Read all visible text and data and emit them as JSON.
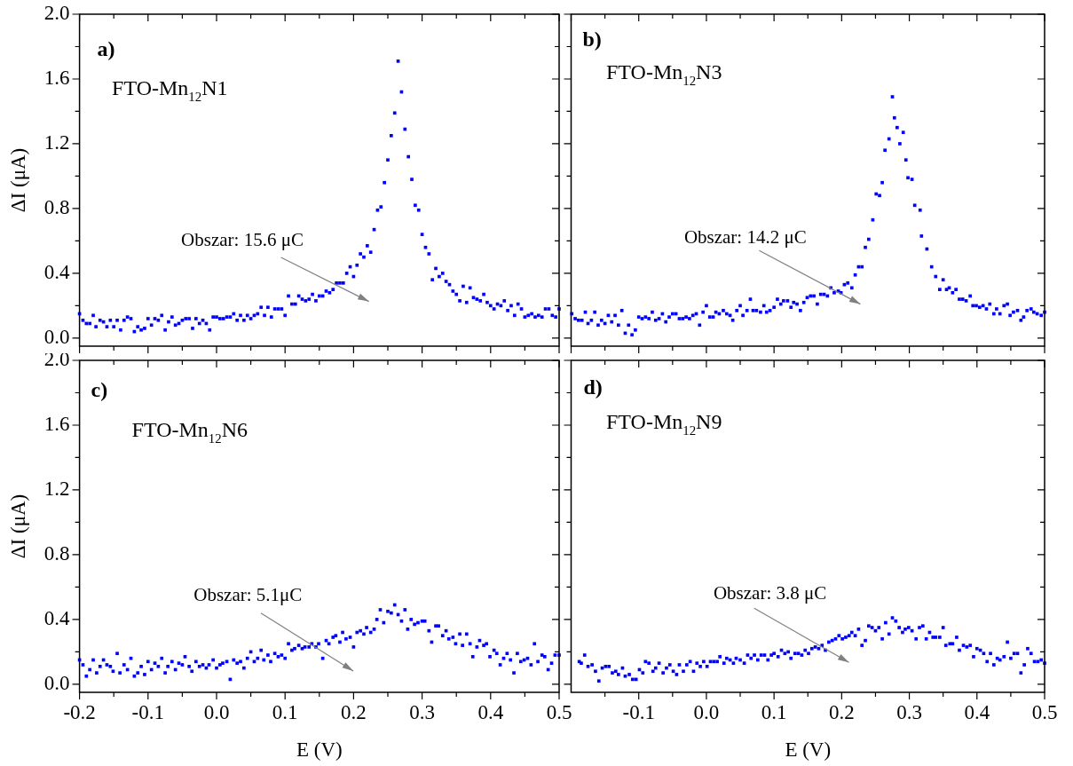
{
  "chart_data": [
    {
      "type": "scatter",
      "title": "a)",
      "subtitle": "FTO-Mn$_{12}$N1",
      "ylabel": "ΔI (μA)",
      "color": "#0000ff",
      "marker": "square",
      "tick_labels": "y",
      "xlim": [
        -0.2,
        0.5
      ],
      "ylim": [
        -0.05,
        2.0
      ],
      "xticks": [
        -0.2,
        {
          "value": -0.15,
          "label": null
        },
        -0.1,
        {
          "value": -0.05,
          "label": null
        },
        0.0,
        {
          "value": 0.05,
          "label": null
        },
        0.1,
        {
          "value": 0.15,
          "label": null
        },
        0.2,
        {
          "value": 0.25,
          "label": null
        },
        0.3,
        {
          "value": 0.35,
          "label": null
        },
        0.4,
        {
          "value": 0.45,
          "label": null
        },
        0.5
      ],
      "yticks": [
        {
          "value": 0,
          "label": "0.0"
        },
        {
          "value": 0.2,
          "label": null
        },
        0.4,
        {
          "value": 0.6,
          "label": null
        },
        0.8,
        {
          "value": 1.0,
          "label": null
        },
        1.2,
        {
          "value": 1.4,
          "label": null
        },
        1.6,
        {
          "value": 1.8,
          "label": null
        },
        {
          "value": 2,
          "label": "2.0"
        }
      ],
      "annotations": [
        "Obszar: 15.6 μC"
      ],
      "x": [
        -0.2,
        -0.195,
        -0.19,
        -0.185,
        -0.18,
        -0.176,
        -0.17,
        -0.165,
        -0.16,
        -0.155,
        -0.15,
        -0.145,
        -0.14,
        -0.135,
        -0.13,
        -0.125,
        -0.12,
        -0.115,
        -0.11,
        -0.105,
        -0.1,
        -0.095,
        -0.09,
        -0.085,
        -0.08,
        -0.075,
        -0.07,
        -0.065,
        -0.06,
        -0.055,
        -0.05,
        -0.045,
        -0.04,
        -0.035,
        -0.03,
        -0.025,
        -0.02,
        -0.015,
        -0.01,
        -0.005,
        0,
        0.005,
        0.01,
        0.015,
        0.02,
        0.025,
        0.03,
        0.035,
        0.04,
        0.045,
        0.05,
        0.055,
        0.06,
        0.065,
        0.07,
        0.075,
        0.08,
        0.085,
        0.09,
        0.095,
        0.1,
        0.105,
        0.11,
        0.115,
        0.12,
        0.125,
        0.13,
        0.135,
        0.14,
        0.145,
        0.15,
        0.155,
        0.16,
        0.165,
        0.17,
        0.175,
        0.18,
        0.185,
        0.19,
        0.195,
        0.2,
        0.205,
        0.21,
        0.215,
        0.22,
        0.225,
        0.23,
        0.235,
        0.24,
        0.245,
        0.25,
        0.255,
        0.26,
        0.265,
        0.27,
        0.275,
        0.28,
        0.285,
        0.29,
        0.295,
        0.3,
        0.305,
        0.31,
        0.315,
        0.32,
        0.325,
        0.33,
        0.335,
        0.34,
        0.345,
        0.35,
        0.355,
        0.36,
        0.365,
        0.37,
        0.375,
        0.38,
        0.385,
        0.39,
        0.395,
        0.4,
        0.405,
        0.41,
        0.415,
        0.42,
        0.425,
        0.43,
        0.435,
        0.44,
        0.445,
        0.45,
        0.455,
        0.46,
        0.465,
        0.47,
        0.475,
        0.48,
        0.485,
        0.49,
        0.495,
        0.5
      ],
      "values": [
        0.15,
        0.11,
        0.09,
        0.09,
        0.14,
        0.07,
        0.11,
        0.1,
        0.07,
        0.11,
        0.07,
        0.11,
        0.05,
        0.11,
        0.13,
        0.12,
        0.04,
        0.07,
        0.05,
        0.06,
        0.12,
        0.08,
        0.12,
        0.11,
        0.14,
        0.05,
        0.1,
        0.13,
        0.08,
        0.09,
        0.11,
        0.12,
        0.12,
        0.06,
        0.12,
        0.09,
        0.11,
        0.09,
        0.05,
        0.13,
        0.13,
        0.12,
        0.12,
        0.13,
        0.13,
        0.15,
        0.11,
        0.14,
        0.11,
        0.14,
        0.12,
        0.14,
        0.15,
        0.19,
        0.14,
        0.19,
        0.13,
        0.18,
        0.18,
        0.18,
        0.14,
        0.26,
        0.21,
        0.21,
        0.26,
        0.24,
        0.23,
        0.24,
        0.27,
        0.23,
        0.26,
        0.26,
        0.29,
        0.28,
        0.3,
        0.34,
        0.34,
        0.34,
        0.4,
        0.44,
        0.38,
        0.45,
        0.52,
        0.5,
        0.57,
        0.53,
        0.67,
        0.79,
        0.81,
        0.96,
        1.1,
        1.25,
        1.39,
        1.71,
        1.52,
        1.29,
        1.12,
        0.98,
        0.82,
        0.79,
        0.64,
        0.56,
        0.52,
        0.36,
        0.43,
        0.38,
        0.4,
        0.35,
        0.33,
        0.29,
        0.27,
        0.23,
        0.32,
        0.22,
        0.31,
        0.25,
        0.24,
        0.23,
        0.27,
        0.22,
        0.2,
        0.18,
        0.21,
        0.2,
        0.23,
        0.17,
        0.2,
        0.14,
        0.21,
        0.18,
        0.13,
        0.14,
        0.15,
        0.13,
        0.14,
        0.13,
        0.18,
        0.18,
        0.14,
        0.13,
        0.18
      ]
    },
    {
      "type": "scatter",
      "title": "b)",
      "subtitle": "FTO-Mn$_{12}$N3",
      "color": "#0000ff",
      "marker": "square",
      "tick_labels": false,
      "xlim": [
        -0.2,
        0.5
      ],
      "ylim": [
        -0.05,
        2.0
      ],
      "xticks": [
        -0.2,
        {
          "value": -0.15,
          "label": null
        },
        -0.1,
        {
          "value": -0.05,
          "label": null
        },
        0,
        {
          "value": 0.05,
          "label": null
        },
        0.1,
        {
          "value": 0.15,
          "label": null
        },
        0.2,
        {
          "value": 0.25,
          "label": null
        },
        0.3,
        {
          "value": 0.35,
          "label": null
        },
        0.4,
        {
          "value": 0.45,
          "label": null
        },
        0.5
      ],
      "yticks": [
        0,
        {
          "value": 0.2,
          "label": null
        },
        0.4,
        {
          "value": 0.6,
          "label": null
        },
        0.8,
        {
          "value": 1.0,
          "label": null
        },
        1.2,
        {
          "value": 1.4,
          "label": null
        },
        1.6,
        {
          "value": 1.8,
          "label": null
        },
        2
      ],
      "annotations": [
        "Obszar: 14.2 μC"
      ],
      "x": [
        -0.199,
        -0.194,
        -0.189,
        -0.184,
        -0.179,
        -0.175,
        -0.17,
        -0.165,
        -0.16,
        -0.155,
        -0.15,
        -0.145,
        -0.14,
        -0.135,
        -0.13,
        -0.125,
        -0.12,
        -0.115,
        -0.11,
        -0.105,
        -0.1,
        -0.095,
        -0.09,
        -0.085,
        -0.08,
        -0.075,
        -0.07,
        -0.065,
        -0.06,
        -0.055,
        -0.05,
        -0.045,
        -0.04,
        -0.035,
        -0.03,
        -0.025,
        -0.02,
        -0.015,
        -0.01,
        -0.005,
        0,
        0.005,
        0.01,
        0.014,
        0.019,
        0.025,
        0.03,
        0.035,
        0.039,
        0.045,
        0.05,
        0.054,
        0.06,
        0.065,
        0.069,
        0.074,
        0.08,
        0.085,
        0.089,
        0.094,
        0.1,
        0.105,
        0.11,
        0.114,
        0.12,
        0.125,
        0.129,
        0.134,
        0.139,
        0.144,
        0.149,
        0.154,
        0.159,
        0.164,
        0.169,
        0.174,
        0.179,
        0.184,
        0.189,
        0.195,
        0.199,
        0.204,
        0.209,
        0.215,
        0.22,
        0.225,
        0.23,
        0.235,
        0.24,
        0.246,
        0.251,
        0.256,
        0.26,
        0.264,
        0.27,
        0.275,
        0.278,
        0.282,
        0.286,
        0.291,
        0.295,
        0.298,
        0.304,
        0.308,
        0.316,
        0.318,
        0.326,
        0.333,
        0.339,
        0.345,
        0.35,
        0.355,
        0.359,
        0.364,
        0.369,
        0.374,
        0.379,
        0.384,
        0.39,
        0.394,
        0.399,
        0.404,
        0.409,
        0.414,
        0.419,
        0.425,
        0.429,
        0.434,
        0.44,
        0.445,
        0.449,
        0.454,
        0.46,
        0.465,
        0.469,
        0.474,
        0.48,
        0.484,
        0.489,
        0.495,
        0.5
      ],
      "values": [
        0.15,
        0.12,
        0.11,
        0.11,
        0.16,
        0.09,
        0.11,
        0.16,
        0.08,
        0.11,
        0.09,
        0.14,
        0.1,
        0.14,
        0.08,
        0.17,
        0.03,
        0.08,
        0.02,
        0.05,
        0.13,
        0.12,
        0.13,
        0.12,
        0.16,
        0.11,
        0.12,
        0.15,
        0.1,
        0.13,
        0.15,
        0.15,
        0.12,
        0.12,
        0.13,
        0.12,
        0.14,
        0.15,
        0.08,
        0.16,
        0.2,
        0.13,
        0.13,
        0.16,
        0.15,
        0.17,
        0.15,
        0.14,
        0.11,
        0.17,
        0.2,
        0.14,
        0.17,
        0.24,
        0.17,
        0.17,
        0.16,
        0.2,
        0.16,
        0.17,
        0.19,
        0.24,
        0.21,
        0.23,
        0.23,
        0.19,
        0.22,
        0.21,
        0.17,
        0.22,
        0.25,
        0.26,
        0.26,
        0.21,
        0.27,
        0.27,
        0.26,
        0.31,
        0.28,
        0.29,
        0.28,
        0.33,
        0.34,
        0.31,
        0.39,
        0.44,
        0.44,
        0.56,
        0.61,
        0.73,
        0.89,
        0.88,
        0.96,
        1.16,
        1.23,
        1.49,
        1.36,
        1.3,
        1.2,
        1.27,
        1.1,
        0.99,
        0.98,
        0.82,
        0.79,
        0.63,
        0.55,
        0.44,
        0.38,
        0.3,
        0.36,
        0.3,
        0.31,
        0.28,
        0.3,
        0.24,
        0.24,
        0.23,
        0.26,
        0.2,
        0.2,
        0.19,
        0.2,
        0.18,
        0.21,
        0.15,
        0.18,
        0.15,
        0.2,
        0.21,
        0.14,
        0.16,
        0.17,
        0.11,
        0.13,
        0.17,
        0.18,
        0.16,
        0.15,
        0.14,
        0.16
      ]
    },
    {
      "type": "scatter",
      "title": "c)",
      "subtitle": "FTO-Mn$_{12}$N6",
      "xlabel": "E (V)",
      "ylabel": "ΔI (μA)",
      "color": "#0000ff",
      "marker": "square",
      "xlim": [
        -0.2,
        0.5
      ],
      "ylim": [
        -0.05,
        2.0
      ],
      "xticks": [
        -0.2,
        {
          "value": -0.15,
          "label": null
        },
        -0.1,
        {
          "value": -0.05,
          "label": null
        },
        {
          "value": 0,
          "label": "0.0"
        },
        {
          "value": 0.05,
          "label": null
        },
        0.1,
        {
          "value": 0.15,
          "label": null
        },
        0.2,
        {
          "value": 0.25,
          "label": null
        },
        0.3,
        {
          "value": 0.35,
          "label": null
        },
        0.4,
        {
          "value": 0.45,
          "label": null
        },
        0.5
      ],
      "yticks": [
        {
          "value": 0,
          "label": "0.0"
        },
        {
          "value": 0.2,
          "label": null
        },
        0.4,
        {
          "value": 0.6,
          "label": null
        },
        0.8,
        {
          "value": 1.0,
          "label": null
        },
        1.2,
        {
          "value": 1.4,
          "label": null
        },
        1.6,
        {
          "value": 1.8,
          "label": null
        },
        {
          "value": 2,
          "label": "2.0"
        }
      ],
      "annotations": [
        "Obszar: 5.1μC"
      ],
      "x": [
        -0.2,
        -0.195,
        -0.19,
        -0.185,
        -0.18,
        -0.175,
        -0.17,
        -0.165,
        -0.16,
        -0.155,
        -0.151,
        -0.145,
        -0.141,
        -0.135,
        -0.13,
        -0.125,
        -0.12,
        -0.115,
        -0.11,
        -0.105,
        -0.1,
        -0.095,
        -0.09,
        -0.085,
        -0.08,
        -0.075,
        -0.071,
        -0.065,
        -0.06,
        -0.055,
        -0.05,
        -0.046,
        -0.04,
        -0.036,
        -0.03,
        -0.025,
        -0.02,
        -0.015,
        -0.011,
        -0.005,
        0,
        0.005,
        0.009,
        0.015,
        0.02,
        0.025,
        0.03,
        0.035,
        0.04,
        0.045,
        0.05,
        0.055,
        0.06,
        0.065,
        0.069,
        0.075,
        0.079,
        0.085,
        0.09,
        0.095,
        0.1,
        0.105,
        0.11,
        0.114,
        0.12,
        0.125,
        0.129,
        0.135,
        0.139,
        0.145,
        0.149,
        0.155,
        0.16,
        0.164,
        0.17,
        0.174,
        0.18,
        0.184,
        0.189,
        0.195,
        0.2,
        0.205,
        0.21,
        0.215,
        0.219,
        0.225,
        0.23,
        0.234,
        0.239,
        0.244,
        0.25,
        0.255,
        0.26,
        0.265,
        0.27,
        0.275,
        0.279,
        0.284,
        0.289,
        0.294,
        0.3,
        0.304,
        0.31,
        0.314,
        0.32,
        0.324,
        0.33,
        0.335,
        0.339,
        0.345,
        0.349,
        0.355,
        0.359,
        0.365,
        0.37,
        0.374,
        0.38,
        0.384,
        0.39,
        0.394,
        0.399,
        0.405,
        0.409,
        0.414,
        0.419,
        0.424,
        0.429,
        0.434,
        0.439,
        0.444,
        0.449,
        0.454,
        0.459,
        0.464,
        0.469,
        0.475,
        0.479,
        0.484,
        0.489,
        0.494,
        0.5
      ],
      "values": [
        0.15,
        0.12,
        0.05,
        0.09,
        0.15,
        0.07,
        0.11,
        0.15,
        0.12,
        0.11,
        0.08,
        0.19,
        0.07,
        0.12,
        0.09,
        0.16,
        0.05,
        0.07,
        0.11,
        0.06,
        0.14,
        0.09,
        0.13,
        0.11,
        0.16,
        0.07,
        0.11,
        0.14,
        0.09,
        0.13,
        0.12,
        0.17,
        0.11,
        0.08,
        0.14,
        0.11,
        0.12,
        0.1,
        0.12,
        0.15,
        0.1,
        0.12,
        0.13,
        0.14,
        0.03,
        0.15,
        0.13,
        0.14,
        0.1,
        0.16,
        0.2,
        0.14,
        0.16,
        0.21,
        0.15,
        0.18,
        0.14,
        0.19,
        0.17,
        0.18,
        0.16,
        0.25,
        0.21,
        0.22,
        0.24,
        0.22,
        0.23,
        0.23,
        0.25,
        0.23,
        0.25,
        0.16,
        0.27,
        0.25,
        0.29,
        0.3,
        0.26,
        0.32,
        0.28,
        0.29,
        0.23,
        0.32,
        0.33,
        0.31,
        0.35,
        0.32,
        0.34,
        0.4,
        0.46,
        0.38,
        0.45,
        0.44,
        0.49,
        0.43,
        0.39,
        0.46,
        0.34,
        0.4,
        0.37,
        0.38,
        0.39,
        0.39,
        0.33,
        0.26,
        0.36,
        0.36,
        0.3,
        0.33,
        0.28,
        0.29,
        0.25,
        0.31,
        0.24,
        0.31,
        0.25,
        0.17,
        0.23,
        0.27,
        0.24,
        0.25,
        0.17,
        0.21,
        0.19,
        0.12,
        0.16,
        0.19,
        0.15,
        0.07,
        0.19,
        0.14,
        0.15,
        0.16,
        0.12,
        0.25,
        0.14,
        0.18,
        0.17,
        0.09,
        0.13,
        0.18,
        0.18
      ]
    },
    {
      "type": "scatter",
      "title": "d)",
      "subtitle": "FTO-Mn$_{12}$N9",
      "xlabel": "E (V)",
      "color": "#0000ff",
      "marker": "square",
      "tick_labels": "x",
      "xlim": [
        -0.2,
        0.5
      ],
      "ylim": [
        -0.05,
        2.0
      ],
      "xticks": [
        {
          "value": -0.15,
          "label": null
        },
        -0.1,
        {
          "value": -0.05,
          "label": null
        },
        {
          "value": 0,
          "label": "0.0"
        },
        {
          "value": 0.05,
          "label": null
        },
        0.1,
        {
          "value": 0.15,
          "label": null
        },
        0.2,
        {
          "value": 0.25,
          "label": null
        },
        0.3,
        {
          "value": 0.35,
          "label": null
        },
        0.4,
        {
          "value": 0.45,
          "label": null
        },
        0.5
      ],
      "yticks": [
        0,
        {
          "value": 0.2,
          "label": null
        },
        0.4,
        {
          "value": 0.6,
          "label": null
        },
        0.8,
        {
          "value": 1.0,
          "label": null
        },
        1.2,
        {
          "value": 1.4,
          "label": null
        },
        1.6,
        {
          "value": 1.8,
          "label": null
        },
        2
      ],
      "annotations": [
        "Obszar: 3.8 μC"
      ],
      "x": [
        -0.188,
        -0.185,
        -0.18,
        -0.175,
        -0.169,
        -0.164,
        -0.159,
        -0.154,
        -0.149,
        -0.144,
        -0.139,
        -0.134,
        -0.13,
        -0.124,
        -0.12,
        -0.114,
        -0.109,
        -0.104,
        -0.099,
        -0.094,
        -0.09,
        -0.085,
        -0.079,
        -0.075,
        -0.07,
        -0.064,
        -0.059,
        -0.054,
        -0.049,
        -0.044,
        -0.04,
        -0.034,
        -0.029,
        -0.024,
        -0.019,
        -0.014,
        -0.009,
        -0.004,
        0.001,
        0.006,
        0.011,
        0.016,
        0.02,
        0.026,
        0.03,
        0.035,
        0.04,
        0.044,
        0.05,
        0.056,
        0.061,
        0.066,
        0.071,
        0.076,
        0.081,
        0.086,
        0.091,
        0.096,
        0.1,
        0.106,
        0.111,
        0.116,
        0.121,
        0.125,
        0.131,
        0.136,
        0.141,
        0.146,
        0.151,
        0.156,
        0.161,
        0.166,
        0.171,
        0.176,
        0.181,
        0.186,
        0.191,
        0.196,
        0.201,
        0.206,
        0.211,
        0.215,
        0.22,
        0.225,
        0.23,
        0.235,
        0.24,
        0.245,
        0.25,
        0.255,
        0.26,
        0.265,
        0.27,
        0.275,
        0.28,
        0.285,
        0.29,
        0.294,
        0.299,
        0.304,
        0.31,
        0.315,
        0.32,
        0.325,
        0.33,
        0.335,
        0.339,
        0.345,
        0.35,
        0.354,
        0.36,
        0.364,
        0.37,
        0.374,
        0.38,
        0.385,
        0.39,
        0.395,
        0.4,
        0.405,
        0.41,
        0.415,
        0.42,
        0.425,
        0.43,
        0.434,
        0.44,
        0.445,
        0.45,
        0.455,
        0.46,
        0.465,
        0.47,
        0.475,
        0.48,
        0.485,
        0.49,
        0.495,
        0.5
      ],
      "values": [
        0.14,
        0.13,
        0.18,
        0.11,
        0.12,
        0.08,
        0.02,
        0.1,
        0.11,
        0.11,
        0.07,
        0.08,
        0.06,
        0.1,
        0.05,
        0.06,
        0.03,
        0.03,
        0.09,
        0.07,
        0.14,
        0.13,
        0.08,
        0.1,
        0.13,
        0.07,
        0.1,
        0.12,
        0.08,
        0.06,
        0.12,
        0.08,
        0.12,
        0.14,
        0.08,
        0.13,
        0.11,
        0.14,
        0.11,
        0.14,
        0.14,
        0.14,
        0.17,
        0.13,
        0.16,
        0.15,
        0.13,
        0.16,
        0.15,
        0.13,
        0.18,
        0.16,
        0.18,
        0.15,
        0.18,
        0.18,
        0.15,
        0.18,
        0.19,
        0.17,
        0.21,
        0.19,
        0.2,
        0.16,
        0.19,
        0.19,
        0.18,
        0.21,
        0.19,
        0.22,
        0.23,
        0.22,
        0.24,
        0.21,
        0.26,
        0.27,
        0.28,
        0.3,
        0.28,
        0.29,
        0.3,
        0.32,
        0.3,
        0.34,
        0.24,
        0.27,
        0.36,
        0.35,
        0.33,
        0.35,
        0.28,
        0.38,
        0.31,
        0.41,
        0.39,
        0.35,
        0.32,
        0.34,
        0.35,
        0.33,
        0.28,
        0.35,
        0.36,
        0.28,
        0.32,
        0.29,
        0.29,
        0.29,
        0.35,
        0.24,
        0.25,
        0.25,
        0.29,
        0.21,
        0.24,
        0.23,
        0.24,
        0.17,
        0.22,
        0.21,
        0.19,
        0.14,
        0.19,
        0.12,
        0.16,
        0.15,
        0.17,
        0.26,
        0.16,
        0.19,
        0.19,
        0.07,
        0.12,
        0.22,
        0.19,
        0.14,
        0.14,
        0.15,
        0.13
      ]
    }
  ]
}
